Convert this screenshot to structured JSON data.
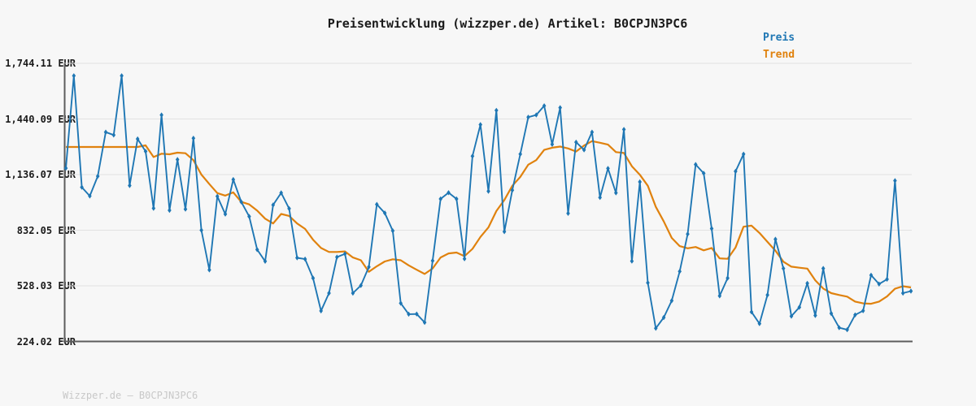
{
  "header": {
    "title": "Preisentwicklung (wizzper.de) Artikel: B0CPJN3PC6"
  },
  "legend": {
    "items": [
      {
        "label": "Preis",
        "color": "#1f77b4"
      },
      {
        "label": "Trend",
        "color": "#e0820e"
      }
    ]
  },
  "footer": {
    "watermark": "Wizzper.de – B0CPJN3PC6"
  },
  "colors": {
    "background": "#f7f7f7",
    "gridline": "#e2e2e2",
    "axis": "#5c5c5c",
    "price_line": "#1f77b4",
    "trend_line": "#e0820e",
    "title_text": "#1a1a1a",
    "watermark_text": "#c8c8c8"
  },
  "chart_data": {
    "type": "line",
    "title": "Preisentwicklung (wizzper.de) Artikel: B0CPJN3PC6",
    "currency": "EUR",
    "grid": true,
    "legend_position": "top-right",
    "x_axis": {
      "tick_labels_visible": false
    },
    "y_axis": {
      "min": 224.02,
      "max": 1744.11,
      "ticks": [
        1744.11,
        1440.09,
        1136.07,
        832.05,
        528.03,
        224.02
      ],
      "tick_labels": [
        "1,744.11 EUR",
        "1,440.09 EUR",
        "1,136.07 EUR",
        "832.05 EUR",
        "528.03 EUR",
        "224.02 EUR"
      ]
    },
    "series": [
      {
        "name": "Preis",
        "color": "#1f77b4",
        "marker": "diamond",
        "values": [
          1171,
          1676,
          1067,
          1019,
          1127,
          1368,
          1352,
          1676,
          1076,
          1331,
          1263,
          952,
          1462,
          941,
          1218,
          947,
          1335,
          832,
          615,
          1017,
          920,
          1109,
          987,
          907,
          726,
          662,
          970,
          1036,
          950,
          681,
          674,
          570,
          391,
          488,
          685,
          703,
          488,
          530,
          631,
          973,
          926,
          829,
          433,
          373,
          374,
          328,
          665,
          1003,
          1037,
          1003,
          676,
          1237,
          1409,
          1045,
          1487,
          824,
          1051,
          1248,
          1450,
          1462,
          1512,
          1301,
          1502,
          924,
          1313,
          1271,
          1368,
          1011,
          1170,
          1036,
          1383,
          663,
          1096,
          545,
          296,
          355,
          447,
          607,
          811,
          1191,
          1143,
          841,
          473,
          570,
          1154,
          1248,
          385,
          321,
          478,
          783,
          623,
          362,
          411,
          542,
          366,
          623,
          377,
          299,
          288,
          369,
          392,
          586,
          538,
          564,
          1103,
          488,
          499
        ]
      },
      {
        "name": "Trend",
        "color": "#e0820e",
        "marker": "none",
        "values": [
          1287,
          1287,
          1287,
          1287,
          1287,
          1287,
          1287,
          1287,
          1287,
          1287,
          1296,
          1232,
          1250,
          1247,
          1256,
          1253,
          1215,
          1136,
          1084,
          1035,
          1021,
          1039,
          987,
          973,
          939,
          895,
          869,
          921,
          910,
          869,
          839,
          780,
          735,
          713,
          713,
          716,
          683,
          668,
          605,
          635,
          661,
          673,
          668,
          640,
          616,
          593,
          623,
          683,
          705,
          710,
          690,
          730,
          795,
          847,
          937,
          997,
          1075,
          1123,
          1190,
          1215,
          1271,
          1283,
          1289,
          1279,
          1262,
          1295,
          1319,
          1310,
          1300,
          1259,
          1254,
          1182,
          1135,
          1075,
          960,
          880,
          790,
          745,
          733,
          740,
          722,
          735,
          678,
          676,
          738,
          851,
          857,
          817,
          768,
          720,
          660,
          633,
          627,
          622,
          558,
          513,
          488,
          478,
          469,
          442,
          432,
          430,
          442,
          470,
          512,
          526,
          519
        ]
      }
    ]
  }
}
